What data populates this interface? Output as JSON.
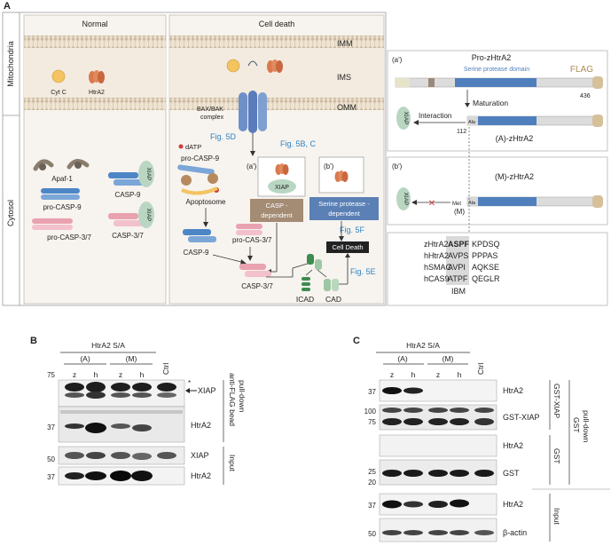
{
  "panelA": {
    "letter": "A",
    "row_mito": "Mitochondria",
    "row_cyto": "Cytosol",
    "normal_title": "Normal",
    "death_title": "Cell death",
    "imm": "IMM",
    "ims": "IMS",
    "omm": "OMM",
    "cytc": "Cyt C",
    "htra2": "HtrA2",
    "baxbak_1": "BAX/BAK",
    "baxbak_2": "complex",
    "apaf1": "Apaf-1",
    "casp9": "CASP-9",
    "xiap": "XIAP",
    "procasp9": "pro-CASP-9",
    "procasp37": "pro-CASP-3/7",
    "casp37": "CASP-3/7",
    "fig5d": "Fig. 5D",
    "fig5bc": "Fig. 5B, C",
    "fig5f": "Fig. 5F",
    "fig5e": "Fig. 5E",
    "datp": "dATP",
    "apoptosome": "Apoptosome",
    "a_prime": "(a')",
    "b_prime": "(b')",
    "casp_dep_1": "CASP -",
    "casp_dep_2": "dependent",
    "serine_dep_1": "Serine protease -",
    "serine_dep_2": "dependent",
    "procas37": "pro-CAS-3/7",
    "celldeath": "Cell Death",
    "icad": "ICAD",
    "cad": "CAD"
  },
  "panelA_right": {
    "a_prime": "(a')",
    "pro_zhtra2": "Pro-zHtrA2",
    "serine_domain": "Serine protease domain",
    "flag": "FLAG",
    "n436": "436",
    "maturation": "Maturation",
    "interaction": "Interaction",
    "xiap": "XIAP",
    "ala": "Ala",
    "n112": "112",
    "a_zhtra2": "(A)-zHtrA2",
    "b_prime": "(b')",
    "met": "Met",
    "m_label": "(M)",
    "m_zhtra2": "(M)-zHtrA2",
    "cross": "✕",
    "seq_names": [
      "zHtrA2",
      "hHtrA2",
      "hSMAC",
      "hCAS9"
    ],
    "seq_heads": [
      "ASPF",
      "AVPS",
      "AVPI",
      "ATPF"
    ],
    "seq_tails": [
      "KPDSQ",
      "PPPAS",
      "AQKSE",
      "QEGLR"
    ],
    "ibm": "IBM"
  },
  "panelB": {
    "letter": "B",
    "header": "HtrA2 S/A",
    "group_a": "(A)",
    "group_m": "(M)",
    "lanes": [
      "z",
      "h",
      "z",
      "h"
    ],
    "ctrl": "Ctrl",
    "mw_75": "75",
    "mw_37a": "37",
    "mw_50": "50",
    "mw_37b": "37",
    "star": "*",
    "xiap_arrow": "XIAP",
    "htra2": "HtrA2",
    "xiap_input": "XIAP",
    "htra2_input": "HtrA2",
    "side_1": "anti-FLAG bead",
    "side_2": "pull-down",
    "side_input": "Input"
  },
  "panelC": {
    "letter": "C",
    "header": "HtrA2 S/A",
    "group_a": "(A)",
    "group_m": "(M)",
    "lanes": [
      "z",
      "h",
      "z",
      "h"
    ],
    "ctrl": "Ctrl",
    "mw_37a": "37",
    "mw_100": "100",
    "mw_75": "75",
    "mw_25": "25",
    "mw_20": "20",
    "mw_37b": "37",
    "mw_50": "50",
    "htra2_a": "HtrA2",
    "gst_xiap": "GST-XIAP",
    "htra2_b": "HtrA2",
    "gst": "GST",
    "htra2_input": "HtrA2",
    "bactin": "β-actin",
    "side_gstxiap": "GST-XIAP",
    "side_gst": "GST",
    "side_gst_pd_1": "GST",
    "side_gst_pd_2": "pull-down",
    "side_input": "Input"
  },
  "colors": {
    "membrane": "#e9dcc8",
    "lipid_head": "#c9b9a4",
    "bax_blue": "#6f8fc9",
    "htra2_orange": "#d9794d",
    "cytc_yellow": "#f3c461",
    "xiap_green": "#b9d6c2",
    "casp9_blue": "#4d86c6",
    "casp37_pink": "#e9a2b0",
    "serine_blue": "#4f7fbd",
    "casp_dep_box": "#a48b74",
    "serine_dep_box": "#5a80b5",
    "fig_link": "#2e84c6",
    "cross_red": "#d23a3a"
  }
}
